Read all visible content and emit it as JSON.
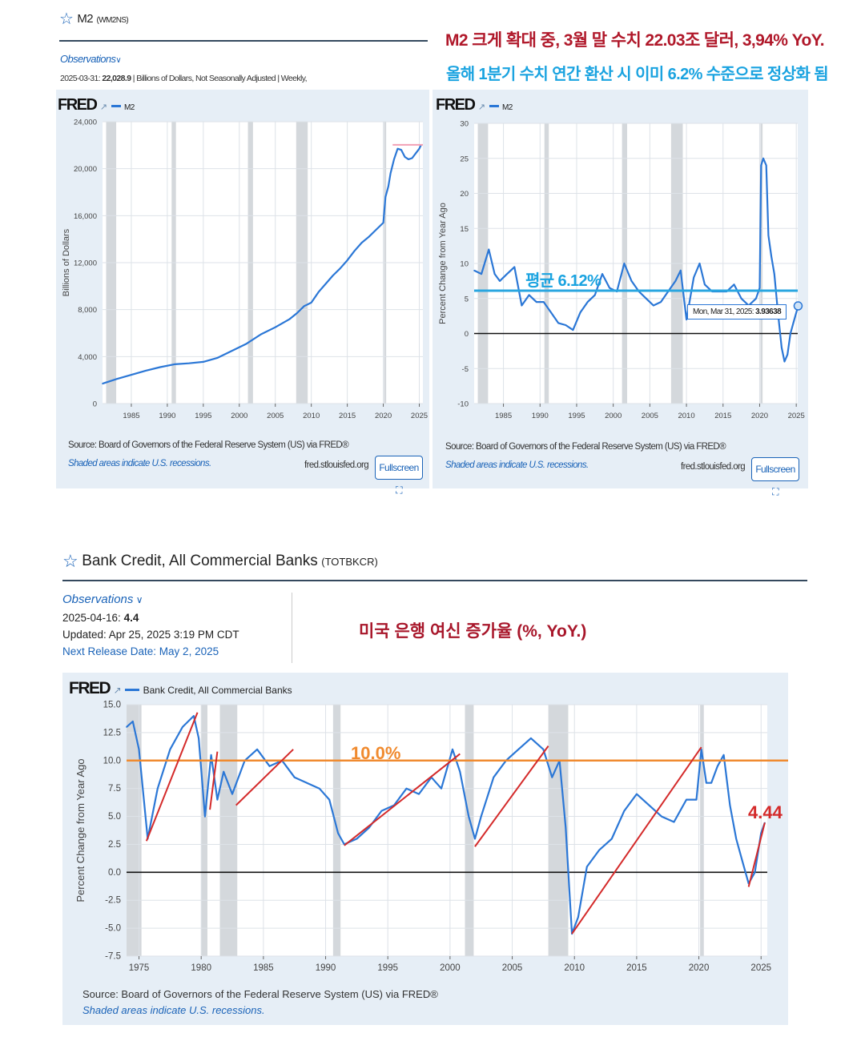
{
  "top_left": {
    "title": "M2",
    "series_id": "(WM2NS)",
    "observations_label": "Observations",
    "obs_date": "2025-03-31:",
    "obs_value": "22,028.9",
    "obs_meta": "| Billions of Dollars, Not Seasonally Adjusted | Weekly,"
  },
  "annotation_top": {
    "line1": "M2 크게 확대 중, 3월 말 수치 22.03조 달러, 3,94% YoY.",
    "line2": "올해 1분기 수치 연간 환산 시 이미 6.2% 수준으로 정상화 됨",
    "line1_color": "#b0182a",
    "line2_color": "#1aa3e0"
  },
  "chart_m2_level": {
    "logo": "FRED",
    "legend": "M2",
    "source": "Source: Board of Governors of the Federal Reserve System (US) via FRED®",
    "shaded_note": "Shaded areas indicate U.S. recessions.",
    "site": "fred.stlouisfed.org",
    "fullscreen": "Fullscreen"
  },
  "chart_m2_yoy": {
    "logo": "FRED",
    "legend": "M2",
    "avg_label": "평균 6.12%",
    "tooltip_date": "Mon, Mar 31, 2025:",
    "tooltip_value": "3.93638",
    "source": "Source: Board of Governors of the Federal Reserve System (US) via FRED®",
    "shaded_note": "Shaded areas indicate U.S. recessions.",
    "site": "fred.stlouisfed.org",
    "fullscreen": "Fullscreen"
  },
  "bank_section": {
    "title": "Bank Credit, All Commercial Banks",
    "series_id": "(TOTBKCR)",
    "observations_label": "Observations",
    "obs_date": "2025-04-16:",
    "obs_value": "4.4",
    "updated": "Updated: Apr 25, 2025 3:19 PM CDT",
    "next_release": "Next Release Date: May 2, 2025",
    "annotation": "미국 은행 여신 증가율 (%, YoY.)",
    "annotation_color": "#a8162a"
  },
  "chart_bank": {
    "logo": "FRED",
    "legend": "Bank Credit, All Commercial Banks",
    "level_label": "10.0%",
    "last_label": "4.44",
    "source": "Source: Board of Governors of the Federal Reserve System (US) via FRED®",
    "shaded_note": "Shaded areas indicate U.S. recessions."
  },
  "colors": {
    "series": "#2b77d6",
    "avg_line": "#29a6e0",
    "level_line": "#f08a2e",
    "trend": "#d42a2a",
    "recession": "#d4d8dc",
    "panel_bg": "#e6eef6"
  },
  "chart_data": [
    {
      "type": "line",
      "title": "",
      "ylabel": "Billions of Dollars",
      "ylim": [
        0,
        24000
      ],
      "yticks": [
        "0",
        "4,000",
        "8,000",
        "12,000",
        "16,000",
        "20,000",
        "24,000"
      ],
      "xlim": [
        1981,
        2025.5
      ],
      "xticks": [
        "1985",
        "1990",
        "1995",
        "2000",
        "2005",
        "2010",
        "2015",
        "2020",
        "2025"
      ],
      "recessions": [
        [
          1981.5,
          1982.9
        ],
        [
          1990.6,
          1991.2
        ],
        [
          2001.2,
          2001.9
        ],
        [
          2007.9,
          2009.5
        ],
        [
          2020.1,
          2020.4
        ]
      ],
      "series": [
        {
          "name": "M2",
          "x": [
            1981,
            1983,
            1985,
            1987,
            1989,
            1991,
            1993,
            1995,
            1997,
            1999,
            2001,
            2003,
            2005,
            2007,
            2008,
            2009,
            2010,
            2011,
            2012,
            2013,
            2014,
            2015,
            2016,
            2017,
            2018,
            2019,
            2020.0,
            2020.3,
            2020.7,
            2021,
            2021.5,
            2022,
            2022.5,
            2023,
            2023.5,
            2024,
            2024.5,
            2025,
            2025.25
          ],
          "y": [
            1700,
            2100,
            2450,
            2800,
            3100,
            3350,
            3430,
            3550,
            3900,
            4500,
            5100,
            5900,
            6500,
            7200,
            7700,
            8300,
            8600,
            9500,
            10200,
            10900,
            11500,
            12200,
            13000,
            13700,
            14200,
            14800,
            15400,
            17600,
            18500,
            19600,
            20800,
            21700,
            21600,
            21000,
            20800,
            20900,
            21300,
            21700,
            22029
          ]
        }
      ],
      "annotation": {
        "type": "hline",
        "y": 22029,
        "color": "#f2a0b4"
      }
    },
    {
      "type": "line",
      "title": "",
      "ylabel": "Percent Change from Year Ago",
      "ylim": [
        -10,
        30
      ],
      "yticks": [
        "-10",
        "-5",
        "0",
        "5",
        "10",
        "15",
        "20",
        "25",
        "30"
      ],
      "xlim": [
        1981,
        2025.2
      ],
      "xticks": [
        "1985",
        "1990",
        "1995",
        "2000",
        "2005",
        "2010",
        "2015",
        "2020",
        "2025"
      ],
      "recessions": [
        [
          1981.5,
          1982.9
        ],
        [
          1990.6,
          1991.2
        ],
        [
          2001.2,
          2001.9
        ],
        [
          2007.9,
          2009.5
        ],
        [
          2020.1,
          2020.4
        ]
      ],
      "average": 6.12,
      "series": [
        {
          "name": "M2",
          "x": [
            1981,
            1982,
            1983,
            1983.8,
            1984.5,
            1985.5,
            1986.5,
            1987.5,
            1988.5,
            1989.5,
            1990.5,
            1991.5,
            1992.5,
            1993.5,
            1994.5,
            1995.5,
            1996.5,
            1997.5,
            1998.5,
            1999.5,
            2000.5,
            2001.5,
            2002.5,
            2003.5,
            2004.5,
            2005.5,
            2006.5,
            2007.5,
            2008.5,
            2009.2,
            2010,
            2011,
            2011.8,
            2012.5,
            2013.5,
            2014.5,
            2015.5,
            2016.5,
            2017.5,
            2018.5,
            2019.5,
            2020.0,
            2020.2,
            2020.5,
            2020.9,
            2021.2,
            2021.6,
            2022.0,
            2022.5,
            2023.0,
            2023.4,
            2023.8,
            2024.2,
            2024.6,
            2025.0,
            2025.25
          ],
          "y": [
            9,
            8.5,
            12,
            8.5,
            7.5,
            8.5,
            9.5,
            4,
            5.5,
            4.5,
            4.5,
            3,
            1.5,
            1.2,
            0.5,
            3,
            4.5,
            5.5,
            8.5,
            6.5,
            6,
            10,
            7.5,
            6,
            5,
            4,
            4.5,
            6,
            7.5,
            9,
            2,
            8,
            10,
            7,
            6,
            6,
            6,
            7,
            5,
            4,
            5,
            6.5,
            24,
            25,
            24,
            14,
            11,
            8.5,
            3,
            -2,
            -4,
            -3,
            0,
            1.5,
            3,
            3.94
          ]
        }
      ],
      "tooltip": {
        "x": 2025.25,
        "y": 3.93638
      }
    },
    {
      "type": "line",
      "title": "",
      "ylabel": "Percent Change from Year Ago",
      "ylim": [
        -7.5,
        15
      ],
      "yticks": [
        "-7.5",
        "-5.0",
        "-2.5",
        "0.0",
        "2.5",
        "5.0",
        "7.5",
        "10.0",
        "12.5",
        "15.0"
      ],
      "xlim": [
        1974,
        2025.5
      ],
      "xticks": [
        "1975",
        "1980",
        "1985",
        "1990",
        "1995",
        "2000",
        "2005",
        "2010",
        "2015",
        "2020",
        "2025"
      ],
      "recessions": [
        [
          1974,
          1975.2
        ],
        [
          1980.0,
          1980.5
        ],
        [
          1981.5,
          1982.9
        ],
        [
          1990.6,
          1991.2
        ],
        [
          2001.2,
          2001.9
        ],
        [
          2007.9,
          2009.5
        ],
        [
          2020.1,
          2020.4
        ]
      ],
      "reference_line": 10.0,
      "series": [
        {
          "name": "Bank Credit, All Commercial Banks",
          "x": [
            1974,
            1974.5,
            1975,
            1975.7,
            1976.5,
            1977.5,
            1978.5,
            1979.4,
            1979.8,
            1980.3,
            1980.8,
            1981.3,
            1981.8,
            1982.5,
            1983.5,
            1984.5,
            1985.5,
            1986.5,
            1987.5,
            1988.5,
            1989.5,
            1990.3,
            1991.0,
            1991.5,
            1992.5,
            1993.5,
            1994.5,
            1995.5,
            1996.5,
            1997.5,
            1998.5,
            1999.3,
            2000.2,
            2000.8,
            2001.5,
            2002.0,
            2002.5,
            2003.5,
            2004.5,
            2005.5,
            2006.5,
            2007.5,
            2008.2,
            2008.8,
            2009.3,
            2009.8,
            2010.3,
            2011.0,
            2012.0,
            2013.0,
            2014.0,
            2015.0,
            2016.0,
            2017.0,
            2018.0,
            2019.0,
            2019.8,
            2020.2,
            2020.6,
            2021.0,
            2021.5,
            2022.0,
            2022.5,
            2023.0,
            2023.5,
            2024.0,
            2024.5,
            2025.0,
            2025.3
          ],
          "y": [
            13,
            13.5,
            11,
            3,
            7.5,
            11,
            13,
            14,
            12,
            5,
            10.5,
            6.5,
            9,
            7,
            10,
            11,
            9.5,
            10,
            8.5,
            8,
            7.5,
            6.5,
            3.5,
            2.5,
            3,
            4,
            5.5,
            6,
            7.5,
            7,
            8.5,
            7.5,
            11,
            9,
            5,
            3,
            5,
            8.5,
            10,
            11,
            12,
            11,
            8.5,
            10,
            4,
            -5.5,
            -4,
            0.5,
            2,
            3,
            5.5,
            7,
            6,
            5,
            4.5,
            6.5,
            6.5,
            11,
            8,
            8,
            9.5,
            10.5,
            6,
            3,
            1,
            -1,
            0,
            3.5,
            4.44
          ]
        }
      ],
      "annotation": "4.44"
    }
  ]
}
